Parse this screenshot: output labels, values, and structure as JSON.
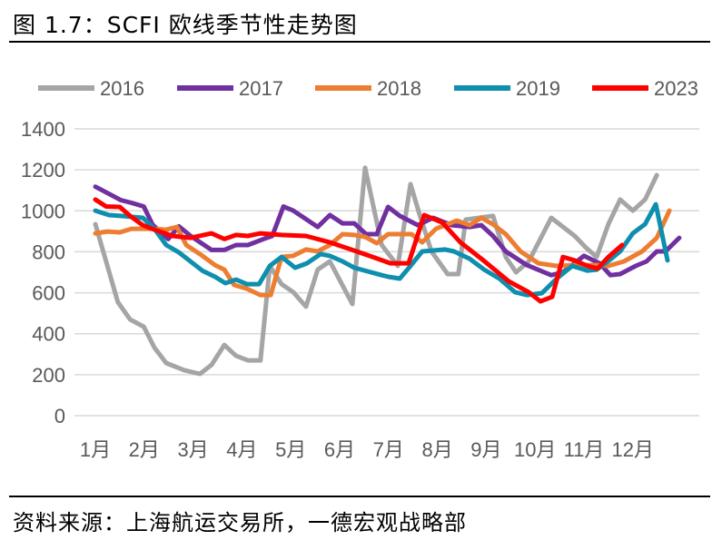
{
  "title": "图 1.7：SCFI 欧线季节性走势图",
  "source": "资料来源：上海航运交易所，一德宏观战略部",
  "chart_data": {
    "type": "line",
    "title": "SCFI 欧线季节性走势图",
    "xlabel": "",
    "ylabel": "",
    "ylim": [
      0,
      1400
    ],
    "yticks": [
      "0",
      "200",
      "400",
      "600",
      "800",
      "1000",
      "1200",
      "1400"
    ],
    "xticks": [
      "1月",
      "2月",
      "3月",
      "4月",
      "5月",
      "6月",
      "7月",
      "8月",
      "9月",
      "10月",
      "11月",
      "12月"
    ],
    "grid": true,
    "legend": "top",
    "series": [
      {
        "name": "2016",
        "color": "#A5A5A5",
        "points": [
          [
            1.0,
            935
          ],
          [
            1.46,
            555
          ],
          [
            1.71,
            470
          ],
          [
            1.99,
            434
          ],
          [
            2.21,
            332
          ],
          [
            2.45,
            257
          ],
          [
            2.82,
            222
          ],
          [
            3.14,
            204
          ],
          [
            3.38,
            248
          ],
          [
            3.64,
            345
          ],
          [
            3.88,
            292
          ],
          [
            4.12,
            270
          ],
          [
            4.38,
            270
          ],
          [
            4.57,
            731
          ],
          [
            4.81,
            642
          ],
          [
            5.05,
            603
          ],
          [
            5.31,
            532
          ],
          [
            5.55,
            713
          ],
          [
            5.8,
            753
          ],
          [
            6.26,
            545
          ],
          [
            6.52,
            1210
          ],
          [
            6.86,
            833
          ],
          [
            7.19,
            731
          ],
          [
            7.45,
            1130
          ],
          [
            7.64,
            979
          ],
          [
            7.88,
            802
          ],
          [
            8.21,
            691
          ],
          [
            8.43,
            691
          ],
          [
            8.58,
            957
          ],
          [
            9.14,
            975
          ],
          [
            9.4,
            775
          ],
          [
            9.61,
            700
          ],
          [
            9.87,
            753
          ],
          [
            10.33,
            966
          ],
          [
            10.81,
            877
          ],
          [
            11.04,
            820
          ],
          [
            11.26,
            775
          ],
          [
            11.5,
            935
          ],
          [
            11.74,
            1055
          ],
          [
            12.0,
            1001
          ],
          [
            12.25,
            1055
          ],
          [
            12.49,
            1174
          ]
        ]
      },
      {
        "name": "2017",
        "color": "#7030A0",
        "points": [
          [
            1.0,
            1118
          ],
          [
            1.52,
            1052
          ],
          [
            1.74,
            1039
          ],
          [
            1.99,
            1021
          ],
          [
            2.17,
            933
          ],
          [
            2.49,
            862
          ],
          [
            2.71,
            924
          ],
          [
            2.95,
            877
          ],
          [
            3.38,
            809
          ],
          [
            3.64,
            809
          ],
          [
            3.88,
            833
          ],
          [
            4.12,
            833
          ],
          [
            4.44,
            862
          ],
          [
            4.62,
            877
          ],
          [
            4.85,
            1021
          ],
          [
            5.05,
            1001
          ],
          [
            5.55,
            921
          ],
          [
            5.8,
            979
          ],
          [
            6.06,
            939
          ],
          [
            6.3,
            939
          ],
          [
            6.54,
            886
          ],
          [
            6.76,
            886
          ],
          [
            6.99,
            1019
          ],
          [
            7.23,
            975
          ],
          [
            7.6,
            930
          ],
          [
            7.91,
            966
          ],
          [
            8.29,
            930
          ],
          [
            8.66,
            921
          ],
          [
            8.9,
            930
          ],
          [
            9.14,
            877
          ],
          [
            9.4,
            802
          ],
          [
            9.83,
            735
          ],
          [
            10.33,
            686
          ],
          [
            10.57,
            700
          ],
          [
            11.0,
            780
          ],
          [
            11.32,
            744
          ],
          [
            11.54,
            686
          ],
          [
            11.74,
            691
          ],
          [
            12.06,
            731
          ],
          [
            12.28,
            753
          ],
          [
            12.49,
            802
          ],
          [
            12.67,
            802
          ],
          [
            12.95,
            868
          ]
        ]
      },
      {
        "name": "2018",
        "color": "#ED7D31",
        "points": [
          [
            1.0,
            890
          ],
          [
            1.24,
            899
          ],
          [
            1.5,
            895
          ],
          [
            1.74,
            912
          ],
          [
            1.99,
            912
          ],
          [
            2.21,
            912
          ],
          [
            2.45,
            908
          ],
          [
            2.67,
            921
          ],
          [
            2.86,
            833
          ],
          [
            3.14,
            789
          ],
          [
            3.45,
            735
          ],
          [
            3.64,
            713
          ],
          [
            3.84,
            638
          ],
          [
            4.1,
            620
          ],
          [
            4.38,
            589
          ],
          [
            4.59,
            589
          ],
          [
            4.81,
            775
          ],
          [
            5.05,
            780
          ],
          [
            5.31,
            811
          ],
          [
            5.55,
            802
          ],
          [
            5.8,
            833
          ],
          [
            6.06,
            886
          ],
          [
            6.3,
            882
          ],
          [
            6.52,
            873
          ],
          [
            6.76,
            842
          ],
          [
            6.99,
            886
          ],
          [
            7.47,
            886
          ],
          [
            7.69,
            846
          ],
          [
            7.97,
            912
          ],
          [
            8.4,
            952
          ],
          [
            8.66,
            930
          ],
          [
            8.9,
            966
          ],
          [
            9.14,
            934
          ],
          [
            9.4,
            886
          ],
          [
            9.7,
            802
          ],
          [
            10.07,
            744
          ],
          [
            10.44,
            731
          ],
          [
            10.81,
            735
          ],
          [
            11.26,
            735
          ],
          [
            11.5,
            731
          ],
          [
            11.82,
            753
          ],
          [
            12.19,
            802
          ],
          [
            12.49,
            868
          ],
          [
            12.75,
            1001
          ]
        ]
      },
      {
        "name": "2019",
        "color": "#0E8FAE",
        "points": [
          [
            1.0,
            1001
          ],
          [
            1.28,
            979
          ],
          [
            1.52,
            975
          ],
          [
            1.97,
            966
          ],
          [
            2.21,
            912
          ],
          [
            2.45,
            833
          ],
          [
            2.71,
            797
          ],
          [
            3.19,
            708
          ],
          [
            3.45,
            678
          ],
          [
            3.66,
            647
          ],
          [
            3.88,
            664
          ],
          [
            4.1,
            642
          ],
          [
            4.35,
            642
          ],
          [
            4.57,
            731
          ],
          [
            4.81,
            775
          ],
          [
            5.09,
            722
          ],
          [
            5.33,
            744
          ],
          [
            5.61,
            789
          ],
          [
            5.8,
            780
          ],
          [
            6.06,
            753
          ],
          [
            6.3,
            722
          ],
          [
            6.86,
            686
          ],
          [
            7.0,
            678
          ],
          [
            7.23,
            669
          ],
          [
            7.45,
            731
          ],
          [
            7.69,
            802
          ],
          [
            8.16,
            811
          ],
          [
            8.34,
            802
          ],
          [
            8.66,
            766
          ],
          [
            8.96,
            713
          ],
          [
            9.27,
            669
          ],
          [
            9.59,
            603
          ],
          [
            9.83,
            589
          ],
          [
            10.14,
            598
          ],
          [
            10.44,
            669
          ],
          [
            10.76,
            731
          ],
          [
            11.07,
            708
          ],
          [
            11.26,
            713
          ],
          [
            11.56,
            766
          ],
          [
            11.74,
            802
          ],
          [
            12.0,
            890
          ],
          [
            12.25,
            935
          ],
          [
            12.47,
            1032
          ],
          [
            12.71,
            758
          ]
        ]
      },
      {
        "name": "2023",
        "color": "#FF0000",
        "points": [
          [
            1.0,
            1055
          ],
          [
            1.22,
            1021
          ],
          [
            1.5,
            1019
          ],
          [
            1.71,
            975
          ],
          [
            1.97,
            930
          ],
          [
            2.21,
            908
          ],
          [
            2.58,
            877
          ],
          [
            2.95,
            868
          ],
          [
            3.38,
            890
          ],
          [
            3.64,
            862
          ],
          [
            3.88,
            882
          ],
          [
            4.12,
            877
          ],
          [
            4.38,
            890
          ],
          [
            4.81,
            882
          ],
          [
            5.31,
            877
          ],
          [
            5.8,
            846
          ],
          [
            6.3,
            806
          ],
          [
            6.61,
            780
          ],
          [
            7.04,
            744
          ],
          [
            7.41,
            744
          ],
          [
            7.73,
            979
          ],
          [
            8.1,
            943
          ],
          [
            8.47,
            846
          ],
          [
            8.9,
            766
          ],
          [
            9.46,
            656
          ],
          [
            9.87,
            603
          ],
          [
            10.11,
            558
          ],
          [
            10.35,
            580
          ],
          [
            10.57,
            775
          ],
          [
            10.81,
            758
          ],
          [
            11.07,
            731
          ],
          [
            11.28,
            718
          ],
          [
            11.5,
            775
          ],
          [
            11.78,
            833
          ]
        ]
      }
    ]
  }
}
